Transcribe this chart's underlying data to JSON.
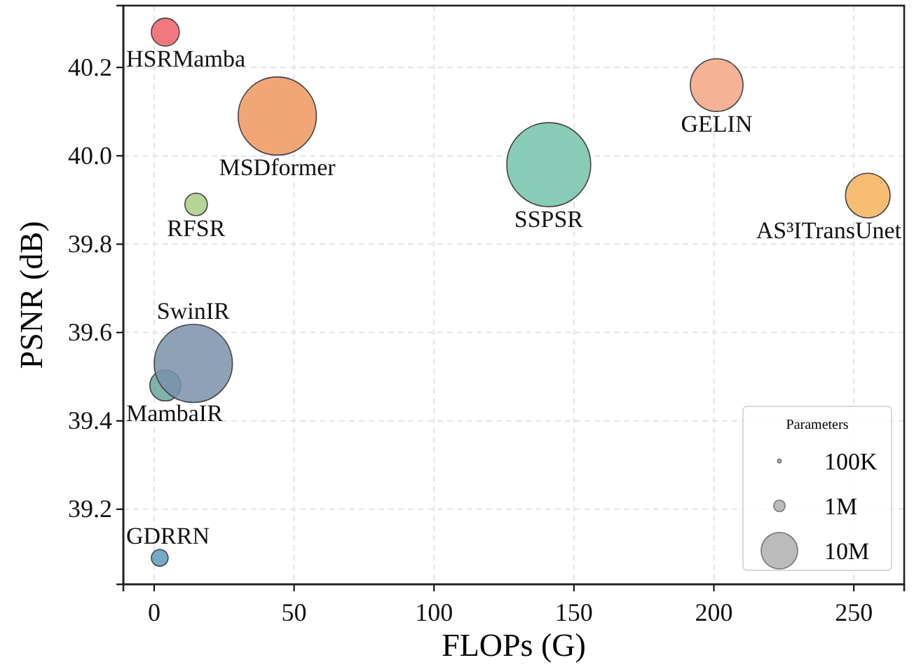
{
  "chart_data": {
    "type": "bubble",
    "xlabel": "FLOPs (G)",
    "ylabel": "PSNR (dB)",
    "legend_title": "Parameters",
    "legend": "bottom right",
    "grid": true,
    "xlim": [
      -11,
      268
    ],
    "xticks": [
      0,
      50,
      100,
      150,
      200,
      250
    ],
    "ylim": [
      39.03,
      40.34
    ],
    "yticks": [
      {
        "value": 39.2,
        "label": "39.2"
      },
      {
        "value": 39.4,
        "label": "39.4"
      },
      {
        "value": 39.6,
        "label": "39.6"
      },
      {
        "value": 39.8,
        "label": "39.8"
      },
      {
        "value": 40.0,
        "label": "40.0"
      },
      {
        "value": 40.2,
        "label": "40.2"
      }
    ],
    "size_legend": [
      {
        "value": 0.1,
        "label": "100K"
      },
      {
        "value": 1,
        "label": "1M"
      },
      {
        "value": 10,
        "label": "10M"
      }
    ],
    "series": [
      {
        "name": "HSRMamba",
        "color": "#f0606a",
        "x": [
          4
        ],
        "values": [
          40.28
        ],
        "sizes": [
          5.9
        ]
      },
      {
        "name": "MSDformer",
        "color": "#f0965e",
        "x": [
          44
        ],
        "values": [
          40.09
        ],
        "sizes": [
          46
        ]
      },
      {
        "name": "RFSR",
        "color": "#a8cc86",
        "x": [
          15
        ],
        "values": [
          39.89
        ],
        "sizes": [
          3.8
        ]
      },
      {
        "name": "MambaIR",
        "color": "#6aa69c",
        "x": [
          4
        ],
        "values": [
          39.48
        ],
        "sizes": [
          7.2
        ]
      },
      {
        "name": "SwinIR",
        "color": "#7a91aa",
        "x": [
          14
        ],
        "values": [
          39.53
        ],
        "sizes": [
          46
        ]
      },
      {
        "name": "GDRRN",
        "color": "#5b9ac0",
        "x": [
          2
        ],
        "values": [
          39.09
        ],
        "sizes": [
          2.1
        ]
      },
      {
        "name": "SSPSR",
        "color": "#73c3aa",
        "x": [
          141
        ],
        "values": [
          39.98
        ],
        "sizes": [
          53
        ]
      },
      {
        "name": "GELIN",
        "color": "#f5a583",
        "x": [
          201
        ],
        "values": [
          40.16
        ],
        "sizes": [
          21
        ]
      },
      {
        "name": "AS³ITransUnet",
        "color": "#f5b25a",
        "x": [
          255
        ],
        "values": [
          39.91
        ],
        "sizes": [
          15
        ]
      }
    ]
  }
}
